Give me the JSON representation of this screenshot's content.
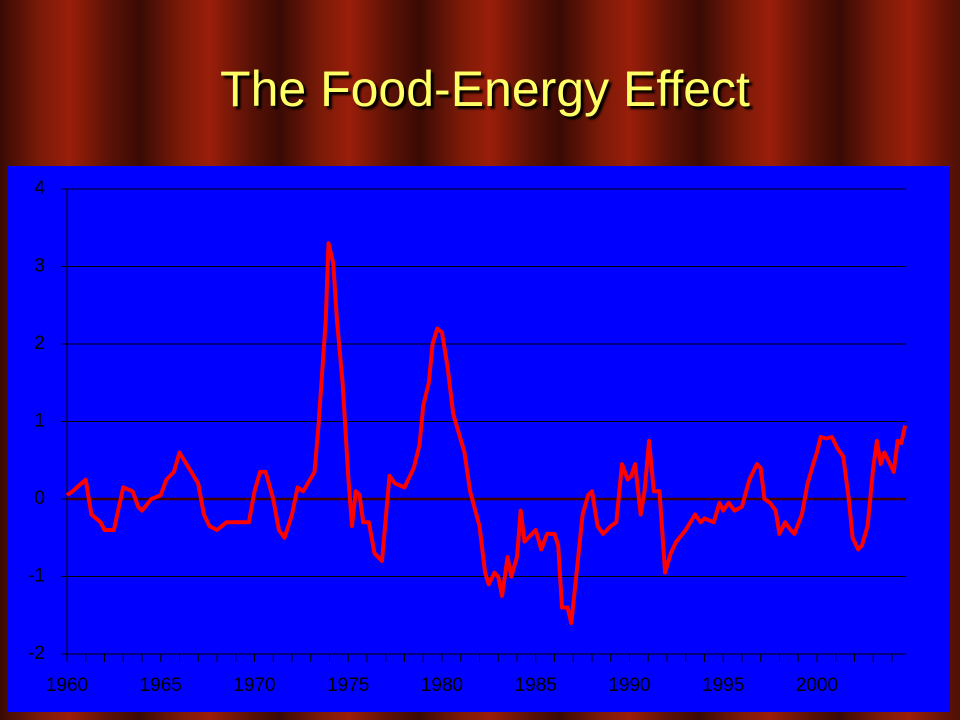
{
  "chart_data": {
    "type": "line",
    "title": "The Food-Energy Effect",
    "color": "#ff0000",
    "grid": true,
    "xlim": [
      1960,
      2004.75
    ],
    "xticks": [
      1960,
      1965,
      1970,
      1975,
      1980,
      1985,
      1990,
      1995,
      2000
    ],
    "ylim": [
      -2,
      4
    ],
    "yticks": [
      -2,
      -1,
      0,
      1,
      2,
      3,
      4
    ],
    "x": [
      1960,
      1960.3,
      1961,
      1961.3,
      1961.8,
      1962,
      1962.5,
      1963,
      1963.5,
      1963.8,
      1964,
      1964.5,
      1965,
      1965.3,
      1965.7,
      1966,
      1966.5,
      1967,
      1967.3,
      1967.6,
      1968,
      1968.5,
      1969,
      1969.7,
      1970,
      1970.3,
      1970.6,
      1971,
      1971.3,
      1971.6,
      1972,
      1972.3,
      1972.6,
      1973.2,
      1973.4,
      1973.6,
      1973.8,
      1973.95,
      1974.2,
      1974.4,
      1974.7,
      1975,
      1975.2,
      1975.4,
      1975.6,
      1975.8,
      1976.1,
      1976.4,
      1976.8,
      1977.2,
      1977.5,
      1978,
      1978.5,
      1978.8,
      1979,
      1979.3,
      1979.5,
      1979.75,
      1980,
      1980.3,
      1980.6,
      1980.9,
      1981.2,
      1981.5,
      1982,
      1982.3,
      1982.5,
      1982.8,
      1983,
      1983.2,
      1983.5,
      1983.7,
      1984,
      1984.2,
      1984.4,
      1984.8,
      1985,
      1985.3,
      1985.6,
      1986,
      1986.2,
      1986.4,
      1986.7,
      1986.9,
      1987.2,
      1987.5,
      1987.8,
      1988,
      1988.3,
      1988.6,
      1989,
      1989.3,
      1989.6,
      1989.9,
      1990.1,
      1990.3,
      1990.6,
      1990.8,
      1991.05,
      1991.3,
      1991.6,
      1991.9,
      1992.2,
      1992.5,
      1993,
      1993.5,
      1993.8,
      1994,
      1994.5,
      1994.8,
      1995,
      1995.3,
      1995.6,
      1996,
      1996.4,
      1996.8,
      1997,
      1997.2,
      1997.5,
      1997.8,
      1998,
      1998.3,
      1998.6,
      1998.8,
      1999.2,
      1999.5,
      1999.8,
      2000,
      2000.2,
      2000.5,
      2000.8,
      2001.1,
      2001.4,
      2001.7,
      2001.9,
      2002.2,
      2002.4,
      2002.7,
      2003,
      2003.2,
      2003.4,
      2003.6,
      2003.9,
      2004.1,
      2004.3,
      2004.5,
      2004.7
    ],
    "values": [
      0.05,
      0.1,
      0.25,
      -0.2,
      -0.3,
      -0.4,
      -0.4,
      0.15,
      0.1,
      -0.1,
      -0.15,
      0.0,
      0.05,
      0.25,
      0.35,
      0.6,
      0.4,
      0.2,
      -0.2,
      -0.35,
      -0.4,
      -0.3,
      -0.3,
      -0.3,
      0.1,
      0.35,
      0.35,
      0.0,
      -0.4,
      -0.5,
      -0.2,
      0.15,
      0.1,
      0.35,
      0.9,
      1.6,
      2.3,
      3.3,
      3.05,
      2.3,
      1.5,
      0.3,
      -0.35,
      0.1,
      0.05,
      -0.3,
      -0.3,
      -0.7,
      -0.8,
      0.3,
      0.2,
      0.15,
      0.4,
      0.7,
      1.2,
      1.5,
      2.0,
      2.2,
      2.15,
      1.7,
      1.1,
      0.85,
      0.6,
      0.1,
      -0.35,
      -0.95,
      -1.1,
      -0.95,
      -1.0,
      -1.25,
      -0.75,
      -1.0,
      -0.75,
      -0.15,
      -0.55,
      -0.45,
      -0.4,
      -0.65,
      -0.45,
      -0.45,
      -0.6,
      -1.4,
      -1.4,
      -1.6,
      -0.9,
      -0.2,
      0.05,
      0.1,
      -0.35,
      -0.45,
      -0.35,
      -0.3,
      0.45,
      0.25,
      0.3,
      0.45,
      -0.2,
      0.1,
      0.75,
      0.1,
      0.1,
      -0.95,
      -0.7,
      -0.55,
      -0.4,
      -0.2,
      -0.3,
      -0.25,
      -0.3,
      -0.05,
      -0.15,
      -0.05,
      -0.15,
      -0.1,
      0.25,
      0.45,
      0.4,
      0.0,
      -0.05,
      -0.15,
      -0.45,
      -0.3,
      -0.4,
      -0.45,
      -0.2,
      0.2,
      0.45,
      0.6,
      0.8,
      0.78,
      0.8,
      0.65,
      0.55,
      0.0,
      -0.5,
      -0.65,
      -0.6,
      -0.35,
      0.4,
      0.75,
      0.45,
      0.6,
      0.45,
      0.35,
      0.75,
      0.72,
      0.95
    ]
  }
}
